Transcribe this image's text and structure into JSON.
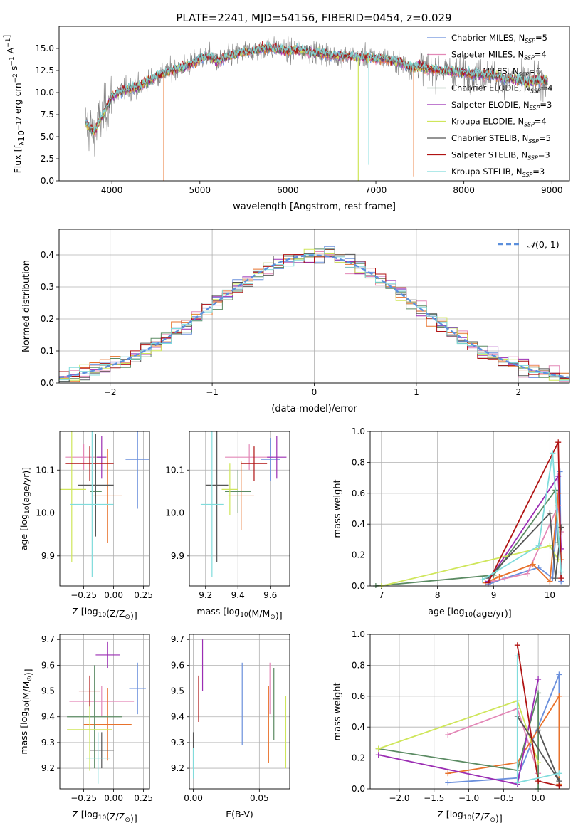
{
  "title": "PLATE=2241, MJD=54156, FIBERID=0454, z=0.029",
  "colors": {
    "chabrier_miles": "#6a8fdc",
    "salpeter_miles": "#e388b7",
    "kroupa_miles": "#e8722c",
    "chabrier_elodie": "#5b8b63",
    "salpeter_elodie": "#9b2db3",
    "kroupa_elodie": "#cfe65a",
    "chabrier_stelib": "#555555",
    "salpeter_stelib": "#b01313",
    "kroupa_stelib": "#80dcdc",
    "data": "#808080",
    "normal": "#5b8fdc"
  },
  "legend_models": [
    {
      "prefix": "Chabrier MILES, N",
      "sub": "SSP",
      "n": "=5",
      "color": "#6a8fdc"
    },
    {
      "prefix": "Salpeter MILES, N",
      "sub": "SSP",
      "n": "=4",
      "color": "#e388b7"
    },
    {
      "prefix": "Kroupa MILES, N",
      "sub": "SSP",
      "n": "=6",
      "color": "#e8722c"
    },
    {
      "prefix": "Chabrier ELODIE, N",
      "sub": "SSP",
      "n": "=4",
      "color": "#5b8b63"
    },
    {
      "prefix": "Salpeter ELODIE, N",
      "sub": "SSP",
      "n": "=3",
      "color": "#9b2db3"
    },
    {
      "prefix": "Kroupa ELODIE, N",
      "sub": "SSP",
      "n": "=4",
      "color": "#cfe65a"
    },
    {
      "prefix": "Chabrier STELIB, N",
      "sub": "SSP",
      "n": "=5",
      "color": "#555555"
    },
    {
      "prefix": "Salpeter STELIB, N",
      "sub": "SSP",
      "n": "=3",
      "color": "#b01313"
    },
    {
      "prefix": "Kroupa STELIB, N",
      "sub": "SSP",
      "n": "=3",
      "color": "#80dcdc"
    }
  ],
  "chart_data": [
    {
      "id": "spectrum",
      "type": "line",
      "xlabel": "wavelength [Angstrom, rest frame]",
      "ylabel": "Flux [f_λ 10^-17 erg cm^-2 s^-1 A^-1]",
      "xlim": [
        3400,
        9200
      ],
      "ylim": [
        0,
        17.5
      ],
      "xticks": [
        4000,
        5000,
        6000,
        7000,
        8000,
        9000
      ],
      "xtick_labels": [
        "4000",
        "5000",
        "6000",
        "7000",
        "8000",
        "9000"
      ],
      "yticks": [
        0,
        2.5,
        5,
        7.5,
        10,
        12.5,
        15
      ],
      "ytick_labels": [
        "0.0",
        "2.5",
        "5.0",
        "7.5",
        "10.0",
        "12.5",
        "15.0"
      ],
      "continuum": {
        "x": [
          3700,
          3800,
          3900,
          4000,
          4100,
          4200,
          4300,
          4400,
          4500,
          4600,
          4700,
          4800,
          4900,
          5000,
          5100,
          5200,
          5300,
          5400,
          5500,
          5600,
          5700,
          5800,
          5900,
          6000,
          6100,
          6200,
          6300,
          6400,
          6500,
          6600,
          6700,
          6800,
          6900,
          7000,
          7100,
          7200,
          7300,
          7400,
          7500,
          7600,
          7700,
          7800,
          7900,
          8000,
          8100,
          8200,
          8300,
          8400,
          8500,
          8600,
          8700,
          8800,
          8950
        ],
        "y": [
          6.5,
          5.5,
          7.5,
          9.5,
          10.2,
          10.5,
          10.6,
          11.2,
          11.8,
          12.2,
          12.6,
          12.9,
          13.2,
          13.8,
          14.2,
          13.5,
          14.0,
          14.3,
          14.6,
          14.7,
          15.0,
          15.1,
          14.9,
          14.7,
          14.9,
          14.7,
          14.5,
          14.5,
          14.2,
          14.2,
          14.1,
          14.0,
          14.1,
          13.9,
          13.8,
          13.6,
          13.3,
          12.8,
          13.0,
          12.7,
          12.6,
          12.5,
          12.4,
          12.2,
          12.1,
          12.0,
          12.0,
          11.7,
          11.5,
          11.4,
          11.2,
          11.3,
          11.4
        ]
      },
      "model_dips": [
        {
          "series": "kroupa_miles",
          "x": 4590,
          "y": 0
        },
        {
          "series": "kroupa_elodie",
          "x": 6800,
          "y": 0
        },
        {
          "series": "kroupa_stelib",
          "x": 6920,
          "y": 1.8
        },
        {
          "series": "kroupa_miles",
          "x": 7430,
          "y": 0.5
        }
      ]
    },
    {
      "id": "residual_histogram",
      "type": "bar",
      "xlabel": "(data-model)/error",
      "ylabel": "Normed distribution",
      "xlim": [
        -2.5,
        2.5
      ],
      "ylim": [
        0,
        0.48
      ],
      "xticks": [
        -2,
        -1,
        0,
        1,
        2
      ],
      "xtick_labels": [
        "−2",
        "−1",
        "0",
        "1",
        "2"
      ],
      "yticks": [
        0,
        0.1,
        0.2,
        0.3,
        0.4
      ],
      "ytick_labels": [
        "0.0",
        "0.1",
        "0.2",
        "0.3",
        "0.4"
      ],
      "bin_width": 0.1,
      "legend_label": "N(0, 1)",
      "reference": "normal distribution mean 0, sigma 1"
    },
    {
      "id": "age_vs_metallicity",
      "type": "scatter",
      "xlabel": "Z [log10(Z/Z⊙)]",
      "ylabel": "age  [log10(age/yr)]",
      "xlim": [
        -0.45,
        0.3
      ],
      "ylim": [
        9.83,
        10.19
      ],
      "xticks": [
        -0.25,
        0,
        0.25
      ],
      "xtick_labels": [
        "−0.25",
        "0.00",
        "0.25"
      ],
      "yticks": [
        9.9,
        10.0,
        10.1
      ],
      "ytick_labels": [
        "9.9",
        "10.0",
        "10.1"
      ],
      "points": [
        {
          "series": "chabrier_miles",
          "x": 0.2,
          "xerr": 0.1,
          "y": 10.125,
          "yerr": 0.115
        },
        {
          "series": "salpeter_miles",
          "x": -0.25,
          "xerr": 0.15,
          "y": 10.13,
          "yerr": 0.03
        },
        {
          "series": "kroupa_miles",
          "x": -0.05,
          "xerr": 0.12,
          "y": 10.04,
          "yerr": 0.11
        },
        {
          "series": "chabrier_elodie",
          "x": -0.15,
          "xerr": 0.05,
          "y": 10.05,
          "yerr": 0.06
        },
        {
          "series": "salpeter_elodie",
          "x": -0.1,
          "xerr": 0.04,
          "y": 10.13,
          "yerr": 0.05
        },
        {
          "series": "kroupa_elodie",
          "x": -0.35,
          "xerr": 0.12,
          "y": 10.055,
          "yerr": 0.17
        },
        {
          "series": "chabrier_stelib",
          "x": -0.15,
          "xerr": 0.15,
          "y": 10.065,
          "yerr": 0.12
        },
        {
          "series": "salpeter_stelib",
          "x": -0.2,
          "xerr": 0.2,
          "y": 10.115,
          "yerr": 0.04
        },
        {
          "series": "kroupa_stelib",
          "x": -0.18,
          "xerr": 0.18,
          "y": 10.02,
          "yerr": 0.17
        }
      ]
    },
    {
      "id": "age_vs_mass",
      "type": "scatter",
      "xlabel": "mass [log10(M/M⊙)]",
      "ylabel": "",
      "xlim": [
        9.1,
        9.72
      ],
      "ylim": [
        9.83,
        10.19
      ],
      "xticks": [
        9.2,
        9.4,
        9.6
      ],
      "xtick_labels": [
        "9.2",
        "9.4",
        "9.6"
      ],
      "yticks": [
        9.9,
        10.0,
        10.1
      ],
      "ytick_labels": [
        "9.9",
        "10.0",
        "10.1"
      ],
      "points": [
        {
          "series": "chabrier_miles",
          "x": 9.6,
          "xerr": 0.06,
          "y": 10.125,
          "yerr": 0.05
        },
        {
          "series": "salpeter_miles",
          "x": 9.47,
          "xerr": 0.15,
          "y": 10.13,
          "yerr": 0.03
        },
        {
          "series": "kroupa_miles",
          "x": 9.42,
          "xerr": 0.08,
          "y": 10.04,
          "yerr": 0.08
        },
        {
          "series": "chabrier_elodie",
          "x": 9.4,
          "xerr": 0.08,
          "y": 10.05,
          "yerr": 0.05
        },
        {
          "series": "salpeter_elodie",
          "x": 9.64,
          "xerr": 0.06,
          "y": 10.13,
          "yerr": 0.05
        },
        {
          "series": "kroupa_elodie",
          "x": 9.35,
          "xerr": 0.05,
          "y": 10.055,
          "yerr": 0.06
        },
        {
          "series": "chabrier_stelib",
          "x": 9.27,
          "xerr": 0.07,
          "y": 10.065,
          "yerr": 0.18
        },
        {
          "series": "salpeter_stelib",
          "x": 9.5,
          "xerr": 0.08,
          "y": 10.115,
          "yerr": 0.04
        },
        {
          "series": "kroupa_stelib",
          "x": 9.24,
          "xerr": 0.07,
          "y": 10.02,
          "yerr": 0.17
        }
      ]
    },
    {
      "id": "mass_weight_vs_age",
      "type": "line",
      "xlabel": "age  [log10(age/yr)]",
      "ylabel": "mass weight",
      "xlim": [
        6.8,
        10.35
      ],
      "ylim": [
        0,
        1.0
      ],
      "xticks": [
        7,
        8,
        9,
        10
      ],
      "xtick_labels": [
        "7",
        "8",
        "9",
        "10"
      ],
      "yticks": [
        0,
        0.2,
        0.4,
        0.6,
        0.8,
        1.0
      ],
      "ytick_labels": [
        "0.0",
        "0.2",
        "0.4",
        "0.6",
        "0.8",
        "1.0"
      ],
      "series": [
        {
          "key": "chabrier_miles",
          "x": [
            8.9,
            9.2,
            9.8,
            10.05,
            10.18,
            10.2
          ],
          "y": [
            0.01,
            0.05,
            0.12,
            0.05,
            0.74,
            0.03
          ]
        },
        {
          "key": "salpeter_miles",
          "x": [
            8.85,
            9.6,
            10.15,
            10.2
          ],
          "y": [
            0.02,
            0.08,
            0.52,
            0.35
          ]
        },
        {
          "key": "kroupa_miles",
          "x": [
            8.85,
            9.1,
            9.7,
            10.0,
            10.15,
            10.2
          ],
          "y": [
            0.02,
            0.06,
            0.14,
            0.03,
            0.6,
            0.17
          ]
        },
        {
          "key": "chabrier_elodie",
          "x": [
            6.9,
            9.0,
            10.1,
            10.15
          ],
          "y": [
            0.0,
            0.07,
            0.62,
            0.28
          ]
        },
        {
          "key": "salpeter_elodie",
          "x": [
            8.9,
            10.15,
            10.2
          ],
          "y": [
            0.03,
            0.71,
            0.24
          ]
        },
        {
          "key": "kroupa_elodie",
          "x": [
            7.0,
            10.0,
            10.15
          ],
          "y": [
            0.0,
            0.26,
            0.17
          ]
        },
        {
          "key": "chabrier_stelib",
          "x": [
            8.9,
            10.0,
            10.1,
            10.2
          ],
          "y": [
            0.05,
            0.47,
            0.05,
            0.38
          ]
        },
        {
          "key": "salpeter_stelib",
          "x": [
            8.9,
            10.15,
            10.2
          ],
          "y": [
            0.02,
            0.93,
            0.05
          ]
        },
        {
          "key": "kroupa_stelib",
          "x": [
            8.8,
            9.8,
            10.05,
            10.2
          ],
          "y": [
            0.04,
            0.26,
            0.86,
            0.09
          ]
        }
      ]
    },
    {
      "id": "mass_vs_metallicity",
      "type": "scatter",
      "xlabel": "Z [log10(Z/Z⊙)]",
      "ylabel": "mass [log10(M/M⊙)]",
      "xlim": [
        -0.45,
        0.3
      ],
      "ylim": [
        9.12,
        9.72
      ],
      "xticks": [
        -0.25,
        0,
        0.25
      ],
      "xtick_labels": [
        "−0.25",
        "0.00",
        "0.25"
      ],
      "yticks": [
        9.2,
        9.3,
        9.4,
        9.5,
        9.6,
        9.7
      ],
      "ytick_labels": [
        "9.2",
        "9.3",
        "9.4",
        "9.5",
        "9.6",
        "9.7"
      ],
      "points": [
        {
          "series": "chabrier_miles",
          "x": 0.2,
          "xerr": 0.07,
          "y": 9.51,
          "yerr": 0.1
        },
        {
          "series": "salpeter_miles",
          "x": -0.1,
          "xerr": 0.27,
          "y": 9.46,
          "yerr": 0.06
        },
        {
          "series": "kroupa_miles",
          "x": -0.05,
          "xerr": 0.2,
          "y": 9.37,
          "yerr": 0.14
        },
        {
          "series": "chabrier_elodie",
          "x": -0.16,
          "xerr": 0.23,
          "y": 9.4,
          "yerr": 0.2
        },
        {
          "series": "salpeter_elodie",
          "x": -0.05,
          "xerr": 0.1,
          "y": 9.64,
          "yerr": 0.05
        },
        {
          "series": "kroupa_elodie",
          "x": -0.2,
          "xerr": 0.19,
          "y": 9.35,
          "yerr": 0.16
        },
        {
          "series": "chabrier_stelib",
          "x": -0.1,
          "xerr": 0.1,
          "y": 9.27,
          "yerr": 0.07
        },
        {
          "series": "salpeter_stelib",
          "x": -0.2,
          "xerr": 0.09,
          "y": 9.5,
          "yerr": 0.06
        },
        {
          "series": "kroupa_stelib",
          "x": -0.13,
          "xerr": 0.1,
          "y": 9.24,
          "yerr": 0.1
        }
      ]
    },
    {
      "id": "mass_vs_extinction",
      "type": "scatter",
      "xlabel": "E(B-V)",
      "ylabel": "",
      "xlim": [
        -0.003,
        0.073
      ],
      "ylim": [
        9.12,
        9.72
      ],
      "xticks": [
        0,
        0.05
      ],
      "xtick_labels": [
        "0.00",
        "0.05"
      ],
      "yticks": [
        9.2,
        9.3,
        9.4,
        9.5,
        9.6,
        9.7
      ],
      "ytick_labels": [
        "9.2",
        "9.3",
        "9.4",
        "9.5",
        "9.6",
        "9.7"
      ],
      "points": [
        {
          "series": "chabrier_miles",
          "x": 0.037,
          "xerr": 0,
          "y": 9.45,
          "yerr": 0.16
        },
        {
          "series": "salpeter_miles",
          "x": 0.058,
          "xerr": 0,
          "y": 9.51,
          "yerr": 0.1
        },
        {
          "series": "kroupa_miles",
          "x": 0.057,
          "xerr": 0,
          "y": 9.37,
          "yerr": 0.15
        },
        {
          "series": "chabrier_elodie",
          "x": 0.061,
          "xerr": 0,
          "y": 9.45,
          "yerr": 0.14
        },
        {
          "series": "salpeter_elodie",
          "x": 0.007,
          "xerr": 0,
          "y": 9.6,
          "yerr": 0.1
        },
        {
          "series": "kroupa_elodie",
          "x": 0.07,
          "xerr": 0,
          "y": 9.34,
          "yerr": 0.14
        },
        {
          "series": "chabrier_stelib",
          "x": 0.0,
          "xerr": 0,
          "y": 9.27,
          "yerr": 0.07
        },
        {
          "series": "salpeter_stelib",
          "x": 0.004,
          "xerr": 0,
          "y": 9.47,
          "yerr": 0.09
        },
        {
          "series": "kroupa_stelib",
          "x": 0.0,
          "xerr": 0,
          "y": 9.22,
          "yerr": 0.06
        }
      ]
    },
    {
      "id": "mass_weight_vs_metallicity",
      "type": "line",
      "xlabel": "Z [log10(Z/Z⊙)]",
      "ylabel": "mass weight",
      "xlim": [
        -2.42,
        0.45
      ],
      "ylim": [
        0,
        1.0
      ],
      "xticks": [
        -2.0,
        -1.5,
        -1.0,
        -0.5,
        0.0
      ],
      "xtick_labels": [
        "−2.0",
        "−1.5",
        "−1.0",
        "−0.5",
        "0.0"
      ],
      "yticks": [
        0,
        0.2,
        0.4,
        0.6,
        0.8,
        1.0
      ],
      "ytick_labels": [
        "0.0",
        "0.2",
        "0.4",
        "0.6",
        "0.8",
        "1.0"
      ],
      "series": [
        {
          "key": "chabrier_miles",
          "x": [
            -1.3,
            -0.3,
            0.3,
            0.3
          ],
          "y": [
            0.04,
            0.07,
            0.74,
            0.03
          ]
        },
        {
          "key": "salpeter_miles",
          "x": [
            -1.3,
            -0.3,
            0.0
          ],
          "y": [
            0.35,
            0.52,
            0.1
          ]
        },
        {
          "key": "kroupa_miles",
          "x": [
            -1.3,
            -0.3,
            0.3,
            0.3
          ],
          "y": [
            0.1,
            0.17,
            0.6,
            0.03
          ]
        },
        {
          "key": "chabrier_elodie",
          "x": [
            -2.3,
            -0.3,
            0.0,
            0.0
          ],
          "y": [
            0.26,
            0.12,
            0.62,
            0.0
          ]
        },
        {
          "key": "salpeter_elodie",
          "x": [
            -2.3,
            -0.3,
            0.0
          ],
          "y": [
            0.22,
            0.03,
            0.71
          ]
        },
        {
          "key": "kroupa_elodie",
          "x": [
            -2.3,
            -0.3,
            0.0
          ],
          "y": [
            0.26,
            0.57,
            0.17
          ]
        },
        {
          "key": "chabrier_stelib",
          "x": [
            -0.3,
            0.3,
            0.0
          ],
          "y": [
            0.47,
            0.05,
            0.38
          ]
        },
        {
          "key": "salpeter_stelib",
          "x": [
            -0.3,
            0.0,
            0.3
          ],
          "y": [
            0.93,
            0.05,
            0.02
          ]
        },
        {
          "key": "kroupa_stelib",
          "x": [
            -0.3,
            -0.3,
            0.3
          ],
          "y": [
            0.86,
            0.04,
            0.1
          ]
        }
      ]
    }
  ]
}
